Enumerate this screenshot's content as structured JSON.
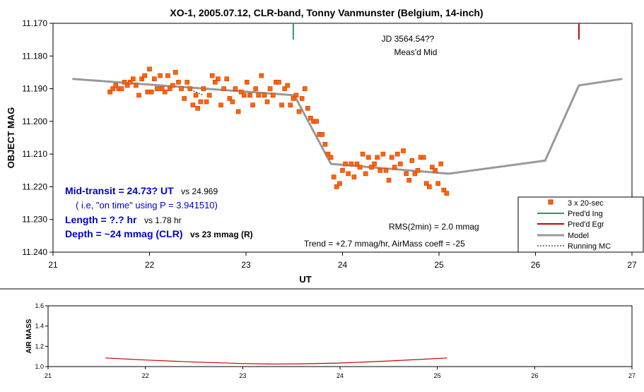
{
  "colors": {
    "point_fill": "#ff6600",
    "point_stroke": "#cc3300",
    "model": "#999999",
    "ingress": "#339966",
    "egress": "#cc0000",
    "airmass": "#cc0000",
    "annotation_blue": "#0000cc"
  },
  "chart_data": [
    {
      "type": "scatter",
      "title": "XO-1, 2005.07.12, CLR-band, Tonny Vanmunster (Belgium, 14-inch)",
      "xlabel": "UT",
      "ylabel": "OBJECT MAG",
      "xlim": [
        21,
        27
      ],
      "ylim": [
        11.24,
        11.17
      ],
      "y_inverted": true,
      "grid": false,
      "x_ticks": [
        "21",
        "22",
        "23",
        "24",
        "25",
        "26",
        "27"
      ],
      "y_ticks": [
        "11.170",
        "11.180",
        "11.190",
        "11.200",
        "11.210",
        "11.220",
        "11.230",
        "11.240"
      ],
      "legend_position": "bottom-right",
      "legend": [
        {
          "label": "3 x 20-sec",
          "kind": "marker"
        },
        {
          "label": "Pred'd Ing",
          "kind": "line-green"
        },
        {
          "label": "Pred'd Egr",
          "kind": "line-red"
        },
        {
          "label": "Model",
          "kind": "line-gray"
        },
        {
          "label": "Running MC",
          "kind": "line-dashed"
        }
      ],
      "series": [
        {
          "name": "3 x 20-sec",
          "x": [
            21.59,
            21.62,
            21.65,
            21.68,
            21.71,
            21.74,
            21.77,
            21.8,
            21.83,
            21.86,
            21.89,
            21.92,
            21.95,
            21.98,
            22.0,
            22.02,
            22.05,
            22.08,
            22.11,
            22.13,
            22.16,
            22.19,
            22.21,
            22.24,
            22.27,
            22.3,
            22.33,
            22.36,
            22.39,
            22.42,
            22.45,
            22.48,
            22.5,
            22.53,
            22.56,
            22.59,
            22.62,
            22.65,
            22.68,
            22.71,
            22.74,
            22.77,
            22.8,
            22.83,
            22.86,
            22.89,
            22.92,
            22.95,
            22.98,
            23.01,
            23.04,
            23.07,
            23.1,
            23.13,
            23.16,
            23.19,
            23.22,
            23.25,
            23.28,
            23.31,
            23.34,
            23.37,
            23.4,
            23.43,
            23.46,
            23.49,
            23.52,
            23.55,
            23.58,
            23.61,
            23.64,
            23.67,
            23.7,
            23.73,
            23.76,
            23.79,
            23.82,
            23.85,
            23.88,
            23.91,
            23.94,
            23.97,
            24.0,
            24.03,
            24.06,
            24.09,
            24.12,
            24.15,
            24.18,
            24.21,
            24.24,
            24.27,
            24.3,
            24.33,
            24.36,
            24.39,
            24.42,
            24.45,
            24.48,
            24.51,
            24.54,
            24.57,
            24.6,
            24.63,
            24.66,
            24.69,
            24.72,
            24.75,
            24.78,
            24.81,
            24.84,
            24.87,
            24.9,
            24.93,
            24.96,
            24.99,
            25.02,
            25.05,
            25.08
          ],
          "values": [
            11.191,
            11.19,
            11.189,
            11.19,
            11.19,
            11.188,
            11.189,
            11.188,
            11.187,
            11.189,
            11.192,
            11.187,
            11.186,
            11.191,
            11.184,
            11.191,
            11.187,
            11.19,
            11.186,
            11.19,
            11.191,
            11.186,
            11.19,
            11.189,
            11.185,
            11.188,
            11.19,
            11.193,
            11.188,
            11.19,
            11.195,
            11.192,
            11.196,
            11.194,
            11.19,
            11.194,
            11.192,
            11.186,
            11.188,
            11.187,
            11.195,
            11.19,
            11.187,
            11.193,
            11.194,
            11.19,
            11.197,
            11.191,
            11.192,
            11.188,
            11.192,
            11.195,
            11.19,
            11.192,
            11.186,
            11.192,
            11.194,
            11.19,
            11.192,
            11.188,
            11.188,
            11.195,
            11.19,
            11.189,
            11.195,
            11.193,
            11.192,
            11.197,
            11.193,
            11.19,
            11.196,
            11.199,
            11.2,
            11.2,
            11.204,
            11.204,
            11.207,
            11.21,
            11.211,
            11.217,
            11.22,
            11.219,
            11.215,
            11.213,
            11.216,
            11.213,
            11.217,
            11.213,
            11.214,
            11.21,
            11.216,
            11.211,
            11.214,
            11.213,
            11.211,
            11.215,
            11.21,
            11.215,
            11.218,
            11.211,
            11.214,
            11.21,
            11.213,
            11.209,
            11.216,
            11.218,
            11.212,
            11.216,
            11.215,
            11.211,
            11.211,
            11.219,
            11.22,
            11.214,
            11.215,
            11.219,
            11.213,
            11.221,
            11.222
          ]
        },
        {
          "name": "Model",
          "x": [
            21.2,
            23.5,
            23.88,
            25.1,
            26.1,
            26.45,
            26.9
          ],
          "values": [
            11.187,
            11.192,
            11.213,
            11.216,
            11.212,
            11.189,
            11.187
          ]
        },
        {
          "name": "Running MC",
          "x": [
            22.4,
            22.48,
            22.56
          ],
          "values": [
            11.19,
            11.191,
            11.192
          ]
        }
      ],
      "markers": [
        {
          "name": "Pred'd Ing",
          "x": 23.49
        },
        {
          "name": "Pred'd Egr",
          "x": 26.45
        }
      ],
      "annotations": {
        "jd": "JD 3564.54??",
        "meas_mid": "Meas'd Mid",
        "mid_transit_label": "Mid-transit = 24.73? UT",
        "mid_transit_vs": "vs 24.969",
        "on_time": "( i.e, \"on time\" using P = 3.941510)",
        "length_label": "Length = ?.? hr",
        "length_vs": "vs 1.78 hr",
        "depth_label": "Depth = ~24 mmag (CLR)",
        "depth_vs": "vs 23 mmag (R)",
        "rms": "RMS(2min) = 2.0 mmag",
        "trend": "Trend = +2.7 mmag/hr, AirMass coeff = -25"
      }
    },
    {
      "type": "line",
      "ylabel": "AIR MASS",
      "xlim": [
        21,
        27
      ],
      "ylim": [
        1.0,
        1.6
      ],
      "x_ticks": [
        "21",
        "22",
        "23",
        "24",
        "25",
        "26",
        "27"
      ],
      "y_ticks": [
        "1.0",
        "1.2",
        "1.4",
        "1.6"
      ],
      "series": [
        {
          "name": "",
          "x": [
            21.59,
            22.0,
            22.5,
            23.0,
            23.3,
            23.6,
            24.0,
            24.5,
            25.1
          ],
          "values": [
            1.085,
            1.065,
            1.045,
            1.03,
            1.025,
            1.027,
            1.035,
            1.055,
            1.085
          ]
        }
      ]
    }
  ]
}
